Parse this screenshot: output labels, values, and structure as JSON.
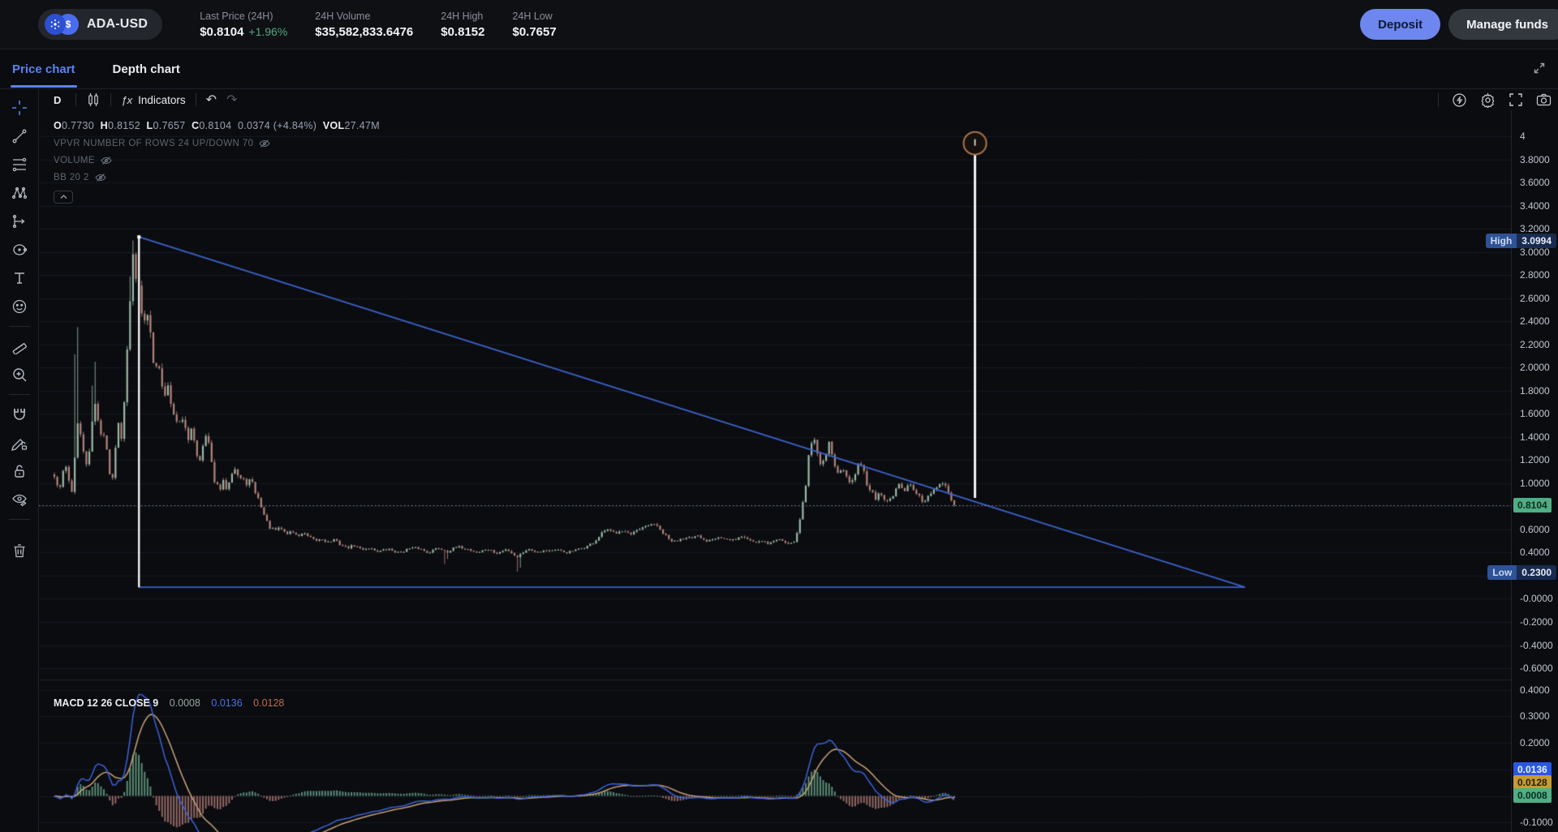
{
  "header": {
    "pair": "ADA-USD",
    "usd_symbol": "$",
    "stats": [
      {
        "label": "Last Price (24H)",
        "value": "$0.8104",
        "change": "+1.96%"
      },
      {
        "label": "24H Volume",
        "value": "$35,582,833.6476"
      },
      {
        "label": "24H High",
        "value": "$0.8152"
      },
      {
        "label": "24H Low",
        "value": "$0.7657"
      }
    ],
    "deposit_label": "Deposit",
    "manage_label": "Manage funds"
  },
  "tabs": {
    "price": "Price chart",
    "depth": "Depth chart"
  },
  "toolbar": {
    "timeframe": "D",
    "fx": "ƒx",
    "indicators": "Indicators",
    "undo": "↶",
    "redo": "↷"
  },
  "legend": {
    "o_label": "O",
    "o": "0.7730",
    "h_label": "H",
    "h": "0.8152",
    "l_label": "L",
    "l": "0.7657",
    "c_label": "C",
    "c": "0.8104",
    "change": "0.0374 (+4.84%)",
    "vol_label": "VOL",
    "vol": "27.47M",
    "vpvr_row": "VPVR NUMBER OF ROWS 24 UP/DOWN 70",
    "volume_row": "VOLUME",
    "bb_row": "BB 20 2",
    "collapse": "⌃"
  },
  "macd_legend": {
    "title": "MACD 12 26 CLOSE 9",
    "hist_value": "0.0008",
    "macd_value": "0.0136",
    "signal_value": "0.0128"
  },
  "badges": {
    "high_label": "High",
    "high_value": "3.0994",
    "low_label": "Low",
    "low_value": "0.2300",
    "last_value": "0.8104",
    "macd_blue": "0.0136",
    "macd_orange": "0.0128",
    "macd_green": "0.0008"
  },
  "colors": {
    "accent_blue": "#5b82f0",
    "deposit": "#6d87ee",
    "green": "#4fa87c",
    "candle_up": "#9db8a6",
    "candle_down": "#b5847b",
    "triangle_blue": "#3d62c9",
    "measure_white": "#f2f2f2",
    "handle_ring": "#a9734a",
    "macd_line": "#3c62d9",
    "signal_line": "#c8a277",
    "hist_up": "#6fae8f",
    "hist_down": "#b58079",
    "last_badge_green": "#4fae85",
    "hl_badge_navy": "#192b50",
    "grid": "#151920"
  },
  "chart_data": {
    "type": "candlestick+macd",
    "title": "ADA-USD daily price with MACD(12,26,9)",
    "last_price": 0.8104,
    "range_high": 3.0994,
    "range_low": 0.23,
    "candles_count": 310,
    "price_axis": {
      "top_value": 4.225,
      "bottom_value": -0.698,
      "ticks": [
        {
          "v": 4.0,
          "label": "4"
        },
        {
          "v": 3.8,
          "label": "3.8000"
        },
        {
          "v": 3.6,
          "label": "3.6000"
        },
        {
          "v": 3.4,
          "label": "3.4000"
        },
        {
          "v": 3.2,
          "label": "3.2000"
        },
        {
          "v": 3.0,
          "label": "3.0000"
        },
        {
          "v": 2.8,
          "label": "2.8000"
        },
        {
          "v": 2.6,
          "label": "2.6000"
        },
        {
          "v": 2.4,
          "label": "2.4000"
        },
        {
          "v": 2.2,
          "label": "2.2000"
        },
        {
          "v": 2.0,
          "label": "2.0000"
        },
        {
          "v": 1.8,
          "label": "1.8000"
        },
        {
          "v": 1.6,
          "label": "1.6000"
        },
        {
          "v": 1.4,
          "label": "1.4000"
        },
        {
          "v": 1.2,
          "label": "1.2000"
        },
        {
          "v": 1.0,
          "label": "1.0000"
        },
        {
          "v": 0.6,
          "label": "0.6000"
        },
        {
          "v": 0.4,
          "label": "0.4000"
        },
        {
          "v": 0.0,
          "label": "-0.0000"
        },
        {
          "v": -0.2,
          "label": "-0.2000"
        },
        {
          "v": -0.4,
          "label": "-0.4000"
        },
        {
          "v": -0.6,
          "label": "-0.6000"
        }
      ]
    },
    "macd_axis": {
      "top_value": 0.4386,
      "bottom_value": -0.136,
      "ticks": [
        {
          "v": 0.4,
          "label": "0.4000"
        },
        {
          "v": 0.3,
          "label": "0.3000"
        },
        {
          "v": 0.2,
          "label": "0.2000"
        },
        {
          "v": -0.1,
          "label": "-0.1000"
        }
      ]
    },
    "price_path": [
      [
        0,
        1.05
      ],
      [
        0.006,
        0.93
      ],
      [
        0.012,
        1.2
      ],
      [
        0.019,
        0.9
      ],
      [
        0.026,
        1.5
      ],
      [
        0.031,
        1.38
      ],
      [
        0.035,
        1.12
      ],
      [
        0.04,
        1.3
      ],
      [
        0.044,
        1.78
      ],
      [
        0.049,
        1.52
      ],
      [
        0.053,
        1.36
      ],
      [
        0.057,
        1.45
      ],
      [
        0.06,
        1.15
      ],
      [
        0.064,
        0.96
      ],
      [
        0.068,
        1.34
      ],
      [
        0.071,
        1.52
      ],
      [
        0.075,
        1.4
      ],
      [
        0.078,
        1.76
      ],
      [
        0.081,
        2.22
      ],
      [
        0.084,
        2.6
      ],
      [
        0.087,
        2.92
      ],
      [
        0.089,
        3.02
      ],
      [
        0.091,
        2.7
      ],
      [
        0.093,
        2.86
      ],
      [
        0.096,
        2.56
      ],
      [
        0.099,
        2.42
      ],
      [
        0.102,
        2.3
      ],
      [
        0.104,
        2.5
      ],
      [
        0.106,
        2.32
      ],
      [
        0.11,
        2.06
      ],
      [
        0.112,
        1.94
      ],
      [
        0.115,
        2.12
      ],
      [
        0.118,
        1.96
      ],
      [
        0.121,
        1.82
      ],
      [
        0.124,
        1.72
      ],
      [
        0.127,
        1.88
      ],
      [
        0.131,
        1.6
      ],
      [
        0.135,
        1.56
      ],
      [
        0.142,
        1.54
      ],
      [
        0.149,
        1.37
      ],
      [
        0.153,
        1.53
      ],
      [
        0.157,
        1.28
      ],
      [
        0.161,
        1.2
      ],
      [
        0.165,
        1.31
      ],
      [
        0.168,
        1.4
      ],
      [
        0.172,
        1.33
      ],
      [
        0.176,
        1.08
      ],
      [
        0.18,
        0.98
      ],
      [
        0.184,
        0.94
      ],
      [
        0.188,
        1.01
      ],
      [
        0.192,
        0.95
      ],
      [
        0.196,
        1.09
      ],
      [
        0.2,
        1.14
      ],
      [
        0.205,
        1.05
      ],
      [
        0.213,
        1.0
      ],
      [
        0.218,
        1.03
      ],
      [
        0.225,
        0.89
      ],
      [
        0.23,
        0.8
      ],
      [
        0.234,
        0.7
      ],
      [
        0.239,
        0.62
      ],
      [
        0.244,
        0.59
      ],
      [
        0.252,
        0.61
      ],
      [
        0.258,
        0.56
      ],
      [
        0.264,
        0.59
      ],
      [
        0.27,
        0.54
      ],
      [
        0.276,
        0.57
      ],
      [
        0.283,
        0.53
      ],
      [
        0.29,
        0.5
      ],
      [
        0.297,
        0.52
      ],
      [
        0.304,
        0.49
      ],
      [
        0.311,
        0.51
      ],
      [
        0.318,
        0.47
      ],
      [
        0.325,
        0.44
      ],
      [
        0.333,
        0.46
      ],
      [
        0.341,
        0.43
      ],
      [
        0.35,
        0.44
      ],
      [
        0.36,
        0.41
      ],
      [
        0.371,
        0.43
      ],
      [
        0.382,
        0.4
      ],
      [
        0.393,
        0.43
      ],
      [
        0.404,
        0.44
      ],
      [
        0.415,
        0.4
      ],
      [
        0.426,
        0.44
      ],
      [
        0.437,
        0.41
      ],
      [
        0.448,
        0.45
      ],
      [
        0.459,
        0.43
      ],
      [
        0.47,
        0.4
      ],
      [
        0.481,
        0.43
      ],
      [
        0.492,
        0.39
      ],
      [
        0.503,
        0.43
      ],
      [
        0.514,
        0.36
      ],
      [
        0.525,
        0.43
      ],
      [
        0.536,
        0.41
      ],
      [
        0.547,
        0.42
      ],
      [
        0.558,
        0.42
      ],
      [
        0.569,
        0.4
      ],
      [
        0.58,
        0.42
      ],
      [
        0.591,
        0.45
      ],
      [
        0.6,
        0.49
      ],
      [
        0.607,
        0.55
      ],
      [
        0.613,
        0.6
      ],
      [
        0.617,
        0.58
      ],
      [
        0.623,
        0.57
      ],
      [
        0.629,
        0.6
      ],
      [
        0.635,
        0.58
      ],
      [
        0.641,
        0.55
      ],
      [
        0.648,
        0.59
      ],
      [
        0.654,
        0.61
      ],
      [
        0.66,
        0.63
      ],
      [
        0.665,
        0.66
      ],
      [
        0.67,
        0.62
      ],
      [
        0.676,
        0.57
      ],
      [
        0.682,
        0.52
      ],
      [
        0.688,
        0.49
      ],
      [
        0.695,
        0.52
      ],
      [
        0.702,
        0.54
      ],
      [
        0.709,
        0.52
      ],
      [
        0.716,
        0.54
      ],
      [
        0.723,
        0.5
      ],
      [
        0.73,
        0.52
      ],
      [
        0.737,
        0.54
      ],
      [
        0.744,
        0.52
      ],
      [
        0.751,
        0.5
      ],
      [
        0.758,
        0.52
      ],
      [
        0.765,
        0.54
      ],
      [
        0.772,
        0.51
      ],
      [
        0.779,
        0.49
      ],
      [
        0.786,
        0.51
      ],
      [
        0.793,
        0.48
      ],
      [
        0.8,
        0.5
      ],
      [
        0.807,
        0.52
      ],
      [
        0.814,
        0.49
      ],
      [
        0.82,
        0.47
      ],
      [
        0.825,
        0.55
      ],
      [
        0.83,
        0.75
      ],
      [
        0.835,
        1.0
      ],
      [
        0.839,
        1.28
      ],
      [
        0.843,
        1.44
      ],
      [
        0.848,
        1.27
      ],
      [
        0.852,
        1.12
      ],
      [
        0.857,
        1.27
      ],
      [
        0.861,
        1.33
      ],
      [
        0.866,
        1.17
      ],
      [
        0.87,
        1.07
      ],
      [
        0.875,
        1.12
      ],
      [
        0.879,
        1.07
      ],
      [
        0.884,
        1.02
      ],
      [
        0.889,
        1.07
      ],
      [
        0.894,
        1.22
      ],
      [
        0.899,
        1.12
      ],
      [
        0.903,
        0.97
      ],
      [
        0.908,
        0.92
      ],
      [
        0.912,
        0.87
      ],
      [
        0.917,
        0.93
      ],
      [
        0.921,
        0.88
      ],
      [
        0.926,
        0.83
      ],
      [
        0.93,
        0.88
      ],
      [
        0.935,
        0.93
      ],
      [
        0.94,
        0.99
      ],
      [
        0.945,
        0.93
      ],
      [
        0.95,
        0.98
      ],
      [
        0.955,
        0.93
      ],
      [
        0.961,
        0.88
      ],
      [
        0.966,
        0.83
      ],
      [
        0.972,
        0.89
      ],
      [
        0.978,
        0.94
      ],
      [
        0.984,
        0.99
      ],
      [
        0.99,
        0.96
      ],
      [
        1,
        0.8104
      ]
    ],
    "wick_highs": [
      [
        0.026,
        2.35
      ],
      [
        0.044,
        2.05
      ],
      [
        0.0888,
        3.0994
      ]
    ],
    "wick_lows": [
      [
        0.433,
        0.3
      ],
      [
        0.514,
        0.235
      ]
    ],
    "drawings": {
      "triangle": {
        "t1": 0.094,
        "p1": 3.13,
        "t2": 1.323,
        "p2": 0.1
      },
      "measure_line": {
        "t": 1.023,
        "top_price": 3.94,
        "bottom_price": 0.873
      }
    },
    "legend_values": {
      "open": 0.773,
      "high": 0.8152,
      "low": 0.7657,
      "close": 0.8104,
      "change_abs": 0.0374,
      "change_pct": 4.84,
      "volume": "27.47M",
      "macd": 0.0136,
      "signal": 0.0128,
      "histogram": 0.0008
    }
  }
}
